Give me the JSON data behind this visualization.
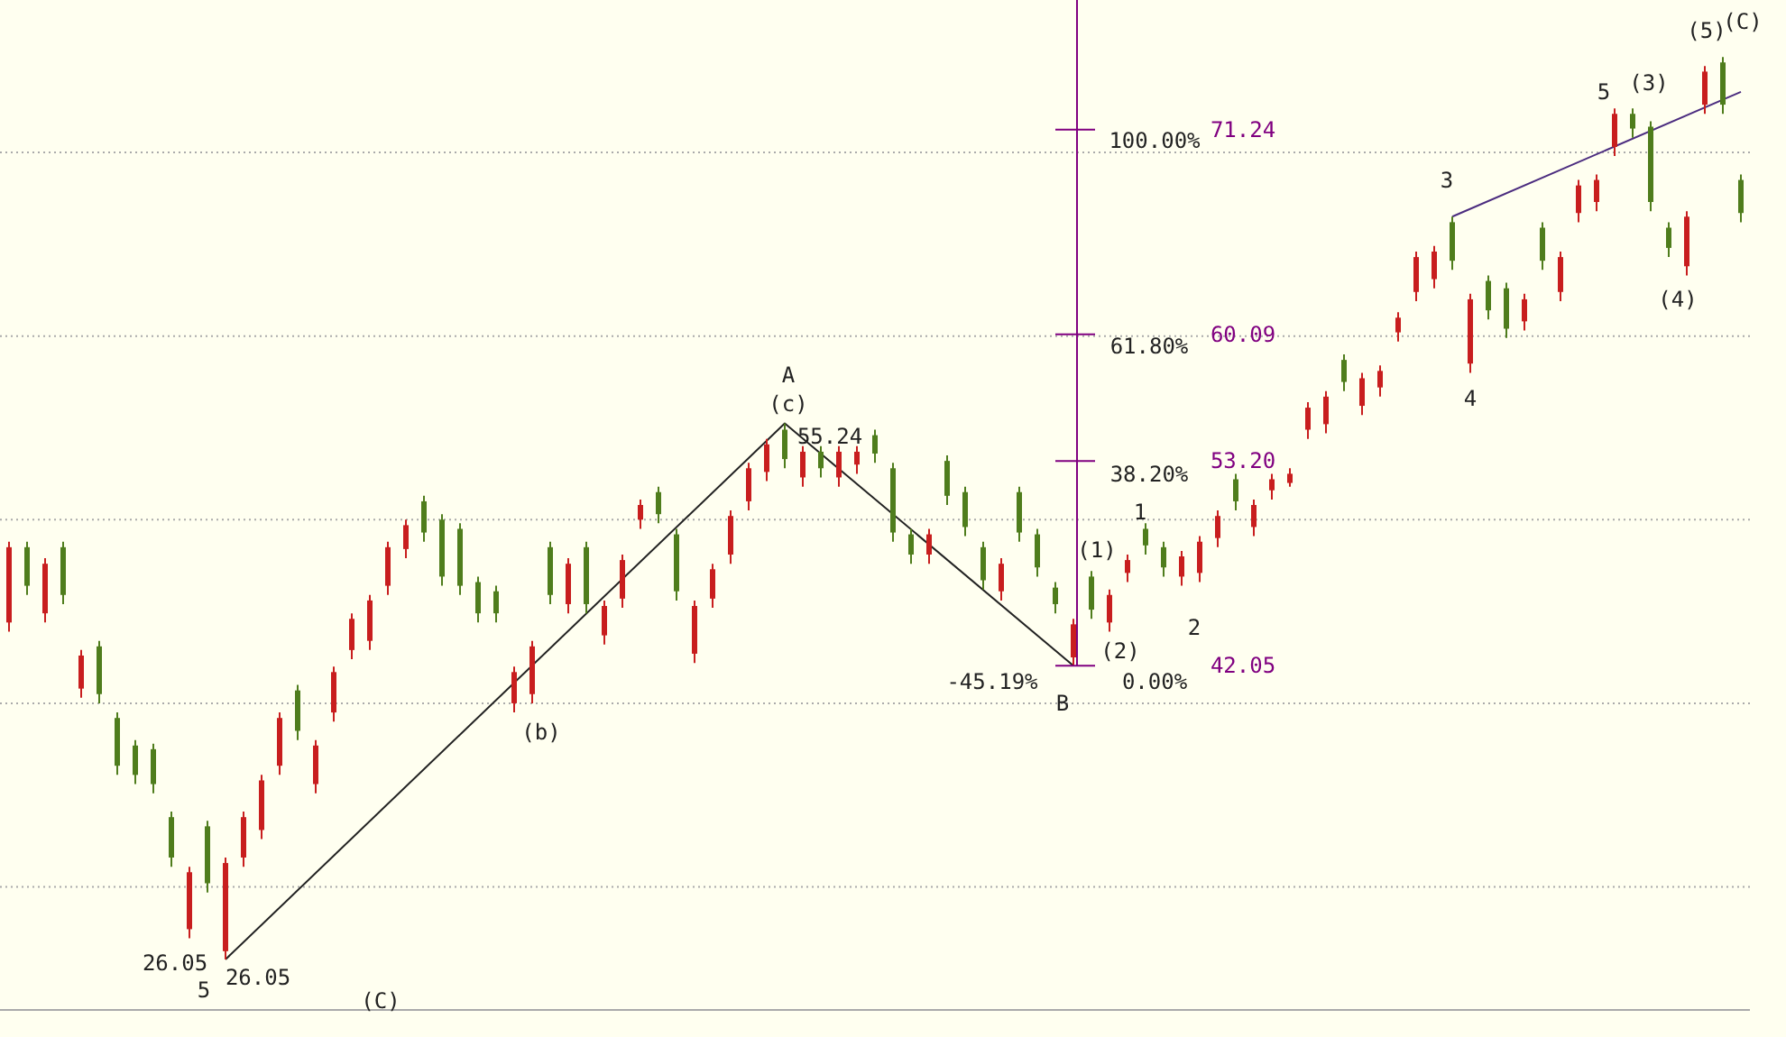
{
  "chart_data": {
    "type": "candlestick",
    "categories": [
      null,
      null,
      null,
      null,
      null,
      null,
      null,
      null,
      null,
      null,
      null,
      null,
      null,
      null,
      null,
      null,
      null,
      null,
      null,
      null,
      null,
      null,
      null,
      null,
      null,
      null,
      null,
      null,
      null,
      null,
      null,
      null,
      null,
      null,
      null,
      null,
      null,
      null,
      null,
      null,
      null,
      null,
      null,
      null,
      null,
      null,
      null,
      null,
      null,
      null,
      null,
      null,
      null,
      null,
      null,
      null,
      null,
      null,
      null,
      null,
      null,
      null,
      null,
      null,
      null,
      null,
      null,
      null,
      null,
      null,
      null,
      null,
      null,
      null,
      null,
      null,
      null,
      null,
      null,
      null,
      null,
      null,
      null,
      null,
      null,
      null,
      null,
      null,
      null,
      null,
      null,
      null,
      null,
      null,
      null,
      null,
      null
    ],
    "ohlc": [
      [
        44.4,
        48.8,
        43.9,
        48.5
      ],
      [
        48.5,
        48.8,
        45.9,
        46.4
      ],
      [
        44.9,
        47.9,
        44.4,
        47.6
      ],
      [
        48.5,
        48.8,
        45.4,
        45.9
      ],
      [
        40.8,
        42.9,
        40.3,
        42.6
      ],
      [
        43.1,
        43.4,
        40.0,
        40.5
      ],
      [
        39.2,
        39.5,
        36.1,
        36.6
      ],
      [
        37.7,
        38.0,
        35.6,
        36.1
      ],
      [
        37.5,
        37.8,
        35.1,
        35.6
      ],
      [
        33.8,
        34.1,
        31.1,
        31.6
      ],
      [
        27.7,
        31.1,
        27.2,
        30.8
      ],
      [
        33.3,
        33.6,
        29.7,
        30.2
      ],
      [
        26.5,
        31.6,
        26.05,
        31.3
      ],
      [
        31.6,
        34.1,
        31.1,
        33.8
      ],
      [
        33.1,
        36.1,
        32.6,
        35.8
      ],
      [
        36.6,
        39.5,
        36.1,
        39.2
      ],
      [
        40.7,
        41.0,
        38.0,
        38.5
      ],
      [
        35.6,
        38.0,
        35.1,
        37.7
      ],
      [
        39.5,
        42.0,
        39.0,
        41.7
      ],
      [
        42.9,
        44.9,
        42.4,
        44.6
      ],
      [
        43.4,
        45.9,
        42.9,
        45.6
      ],
      [
        46.4,
        48.8,
        45.9,
        48.5
      ],
      [
        48.4,
        50.0,
        47.9,
        49.7
      ],
      [
        51.0,
        51.3,
        48.8,
        49.3
      ],
      [
        50.0,
        50.3,
        46.4,
        46.9
      ],
      [
        49.5,
        49.8,
        45.9,
        46.4
      ],
      [
        46.6,
        46.9,
        44.4,
        44.9
      ],
      [
        46.1,
        46.4,
        44.4,
        44.9
      ],
      [
        40.0,
        42.0,
        39.5,
        41.7
      ],
      [
        40.5,
        43.4,
        40.0,
        43.1
      ],
      [
        48.5,
        48.8,
        45.4,
        45.9
      ],
      [
        45.4,
        47.9,
        44.9,
        47.6
      ],
      [
        48.5,
        48.8,
        44.9,
        45.4
      ],
      [
        43.7,
        45.6,
        43.2,
        45.3
      ],
      [
        45.7,
        48.1,
        45.2,
        47.8
      ],
      [
        50.0,
        51.1,
        49.5,
        50.8
      ],
      [
        51.5,
        51.8,
        49.8,
        50.3
      ],
      [
        49.2,
        49.5,
        45.6,
        46.1
      ],
      [
        42.7,
        45.6,
        42.2,
        45.3
      ],
      [
        45.7,
        47.6,
        45.2,
        47.3
      ],
      [
        48.1,
        50.5,
        47.6,
        50.2
      ],
      [
        51.0,
        53.1,
        50.5,
        52.8
      ],
      [
        52.6,
        54.4,
        52.1,
        54.1
      ],
      [
        54.9,
        55.24,
        52.8,
        53.3
      ],
      [
        52.3,
        54.0,
        51.8,
        53.7
      ],
      [
        53.7,
        54.0,
        52.3,
        52.8
      ],
      [
        52.3,
        54.0,
        51.8,
        53.7
      ],
      [
        53.0,
        54.0,
        52.5,
        53.7
      ],
      [
        54.6,
        54.9,
        53.1,
        53.6
      ],
      [
        52.8,
        53.1,
        48.8,
        49.3
      ],
      [
        49.2,
        49.5,
        47.6,
        48.1
      ],
      [
        48.1,
        49.5,
        47.6,
        49.2
      ],
      [
        53.2,
        53.5,
        50.8,
        51.3
      ],
      [
        51.5,
        51.8,
        49.1,
        49.6
      ],
      [
        48.5,
        48.8,
        46.2,
        46.7
      ],
      [
        46.1,
        47.9,
        45.6,
        47.6
      ],
      [
        51.5,
        51.8,
        48.8,
        49.3
      ],
      [
        49.2,
        49.5,
        46.9,
        47.4
      ],
      [
        46.3,
        46.6,
        44.9,
        45.4
      ],
      [
        42.5,
        44.6,
        42.05,
        44.3
      ],
      [
        46.9,
        47.2,
        44.6,
        45.1
      ],
      [
        44.4,
        46.2,
        43.9,
        45.9
      ],
      [
        47.1,
        48.1,
        46.6,
        47.8
      ],
      [
        49.5,
        49.8,
        48.1,
        48.6
      ],
      [
        48.5,
        48.8,
        46.9,
        47.4
      ],
      [
        46.9,
        48.3,
        46.4,
        48.0
      ],
      [
        47.1,
        49.1,
        46.6,
        48.8
      ],
      [
        49.0,
        50.5,
        48.5,
        50.2
      ],
      [
        52.2,
        52.5,
        50.5,
        51.0
      ],
      [
        49.6,
        51.1,
        49.1,
        50.8
      ],
      [
        51.6,
        52.5,
        51.1,
        52.2
      ],
      [
        52.0,
        52.8,
        51.8,
        52.5
      ],
      [
        54.9,
        56.4,
        54.4,
        56.1
      ],
      [
        55.2,
        57.0,
        54.7,
        56.7
      ],
      [
        58.7,
        59.0,
        57.0,
        57.5
      ],
      [
        56.2,
        58.0,
        55.7,
        57.7
      ],
      [
        57.2,
        58.4,
        56.7,
        58.1
      ],
      [
        60.2,
        61.3,
        59.7,
        61.0
      ],
      [
        62.4,
        64.6,
        61.9,
        64.3
      ],
      [
        63.1,
        64.9,
        62.6,
        64.6
      ],
      [
        66.2,
        66.5,
        63.6,
        64.1
      ],
      [
        58.5,
        62.3,
        58.0,
        62.0
      ],
      [
        63.0,
        63.3,
        60.9,
        61.4
      ],
      [
        62.6,
        62.9,
        59.9,
        60.4
      ],
      [
        60.8,
        62.3,
        60.3,
        62.0
      ],
      [
        65.9,
        66.2,
        63.6,
        64.1
      ],
      [
        62.4,
        64.6,
        61.9,
        64.3
      ],
      [
        66.7,
        68.5,
        66.2,
        68.2
      ],
      [
        67.3,
        68.8,
        66.8,
        68.5
      ],
      [
        70.3,
        72.4,
        69.8,
        72.1
      ],
      [
        72.1,
        72.4,
        70.8,
        71.3
      ],
      [
        71.4,
        71.7,
        66.8,
        67.3
      ],
      [
        65.9,
        66.2,
        64.3,
        64.8
      ],
      [
        63.8,
        66.8,
        63.3,
        66.5
      ],
      [
        72.6,
        74.7,
        72.1,
        74.4
      ],
      [
        74.9,
        75.2,
        72.1,
        72.6
      ],
      [
        68.5,
        68.8,
        66.2,
        66.7
      ]
    ],
    "series": [
      {
        "type": "line",
        "color": "#222222",
        "values": [
          null,
          null,
          null,
          null,
          null,
          null,
          null,
          null,
          null,
          null,
          null,
          null,
          26.05,
          null,
          null,
          null,
          null,
          null,
          null,
          null,
          null,
          null,
          null,
          null,
          null,
          null,
          null,
          null,
          null,
          null,
          null,
          null,
          null,
          null,
          null,
          null,
          null,
          null,
          null,
          null,
          null,
          null,
          null,
          55.24,
          null,
          null,
          null,
          null,
          null,
          null,
          null,
          null,
          null,
          null,
          null,
          null,
          null,
          null,
          null,
          42.05,
          null,
          null,
          null,
          null,
          null,
          null,
          null,
          null,
          null,
          null,
          null,
          null,
          null,
          null,
          null,
          null,
          null,
          null,
          null,
          null,
          null,
          null,
          null,
          null,
          null,
          null,
          null,
          null,
          null,
          null,
          null,
          null,
          null,
          null,
          null,
          null,
          null
        ]
      },
      {
        "type": "line",
        "color": "#4b2c7f",
        "values": [
          null,
          null,
          null,
          null,
          null,
          null,
          null,
          null,
          null,
          null,
          null,
          null,
          null,
          null,
          null,
          null,
          null,
          null,
          null,
          null,
          null,
          null,
          null,
          null,
          null,
          null,
          null,
          null,
          null,
          null,
          null,
          null,
          null,
          null,
          null,
          null,
          null,
          null,
          null,
          null,
          null,
          null,
          null,
          null,
          null,
          null,
          null,
          null,
          null,
          null,
          null,
          null,
          null,
          null,
          null,
          null,
          null,
          null,
          null,
          null,
          null,
          null,
          null,
          null,
          null,
          null,
          null,
          null,
          null,
          null,
          null,
          null,
          null,
          null,
          null,
          null,
          null,
          null,
          null,
          null,
          66.5,
          null,
          null,
          null,
          null,
          null,
          null,
          null,
          null,
          null,
          null,
          null,
          null,
          null,
          null,
          null,
          73.3
        ]
      }
    ],
    "ylim": [
      23.3,
      78.3
    ],
    "yticks": [
      42.05,
      {
        "value": 53.2,
        "label": "53.20"
      },
      60.09,
      71.24
    ],
    "tick_labels": "y",
    "ref_lines": [
      {
        "axis": "y",
        "value": 30,
        "color": "#aaaaaa",
        "line_style": "dotted"
      },
      {
        "axis": "y",
        "value": 40,
        "color": "#aaaaaa",
        "line_style": "dotted"
      },
      {
        "axis": "y",
        "value": 50,
        "color": "#aaaaaa",
        "line_style": "dotted"
      },
      {
        "axis": "y",
        "value": 60,
        "color": "#aaaaaa",
        "line_style": "dotted"
      },
      {
        "axis": "y",
        "value": 70,
        "color": "#aaaaaa",
        "line_style": "dotted"
      }
    ],
    "annotations": [
      "26.05",
      "5",
      "26.05",
      "(C)",
      "(b)",
      "A",
      "(c)",
      "55.24",
      "-45.19%",
      "B",
      "0.00%",
      "38.20%",
      "61.80%",
      "100.00%",
      "(1)",
      "(2)",
      "1",
      "2",
      "3",
      "4",
      "5",
      "(3)",
      "(4)",
      "(5)",
      "(C)"
    ]
  }
}
